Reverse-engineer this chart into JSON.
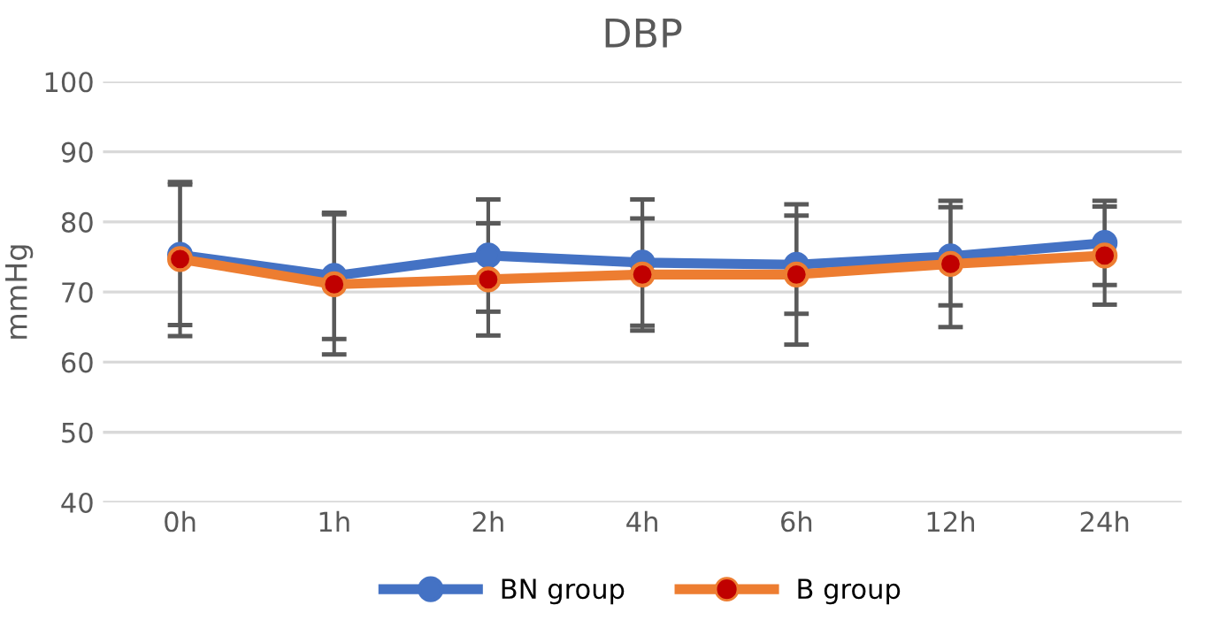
{
  "chart_data": {
    "type": "line",
    "title": "DBP",
    "ylabel": "mmHg",
    "categories": [
      "0h",
      "1h",
      "2h",
      "4h",
      "6h",
      "12h",
      "24h"
    ],
    "series": [
      {
        "name": "BN group",
        "color": "#4472c4",
        "values": [
          75.3,
          72.3,
          75.2,
          74.2,
          73.9,
          75.1,
          77.0
        ],
        "errors": [
          10,
          9,
          8,
          9,
          7,
          7,
          6
        ]
      },
      {
        "name": "B group",
        "color": "#ed7d31",
        "colors": [
          "#c00000",
          "#c00000",
          "#c00000",
          "#c00000",
          "#c00000",
          "#c00000",
          "#c00000"
        ],
        "values": [
          74.7,
          71.1,
          71.8,
          72.5,
          72.5,
          74.0,
          75.2
        ],
        "errors": [
          11,
          10,
          8,
          8,
          10,
          9,
          7
        ]
      }
    ],
    "ylim": [
      40,
      100
    ],
    "yticks": [
      40,
      50,
      60,
      70,
      80,
      90,
      100
    ],
    "grid": "y",
    "legend": "bottom",
    "marker": "circle",
    "line_style": "solid"
  }
}
